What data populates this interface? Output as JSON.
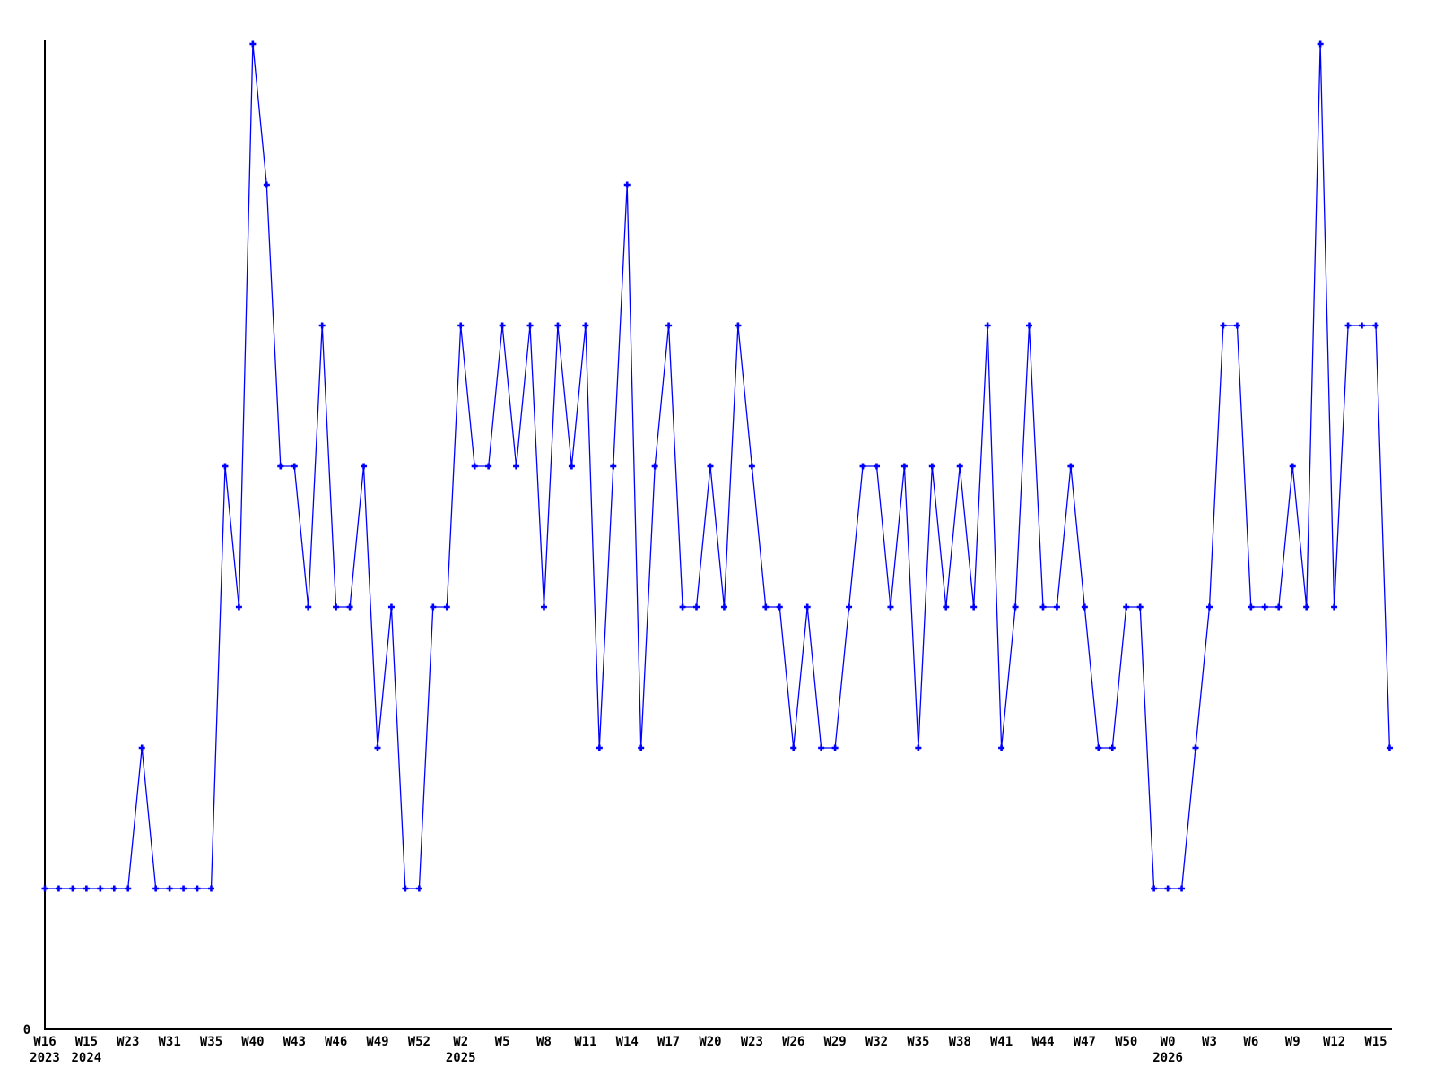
{
  "chart_data": {
    "type": "line",
    "title": "",
    "xlabel": "",
    "ylabel": "",
    "y_axis_zero_label": "0",
    "series_color": "#0000ff",
    "axis_color": "#000000",
    "marker_style": "plus",
    "grid": false,
    "legend": "none",
    "ylim": [
      0,
      7.4
    ],
    "x_tick_interval": 3,
    "values": [
      1,
      1,
      1,
      1,
      1,
      1,
      1,
      2,
      1,
      1,
      1,
      1,
      1,
      4,
      3,
      7,
      6,
      4,
      4,
      3,
      5,
      3,
      3,
      4,
      2,
      3,
      1,
      1,
      3,
      3,
      5,
      4,
      4,
      5,
      4,
      5,
      3,
      5,
      4,
      5,
      2,
      4,
      6,
      2,
      4,
      5,
      3,
      3,
      4,
      3,
      5,
      4,
      3,
      3,
      2,
      3,
      2,
      2,
      3,
      4,
      4,
      3,
      4,
      2,
      4,
      3,
      4,
      3,
      5,
      2,
      3,
      5,
      3,
      3,
      4,
      3,
      2,
      2,
      3,
      3,
      1,
      1,
      1,
      2,
      3,
      5,
      5,
      3,
      3,
      3,
      4,
      3,
      7,
      3,
      5,
      5,
      5,
      2
    ],
    "x_tick_labels": [
      {
        "index": 0,
        "label": "W16",
        "year": "2023"
      },
      {
        "index": 3,
        "label": "W15",
        "year": "2024"
      },
      {
        "index": 6,
        "label": "W23"
      },
      {
        "index": 9,
        "label": "W31"
      },
      {
        "index": 12,
        "label": "W35"
      },
      {
        "index": 15,
        "label": "W40"
      },
      {
        "index": 18,
        "label": "W43"
      },
      {
        "index": 21,
        "label": "W46"
      },
      {
        "index": 24,
        "label": "W49"
      },
      {
        "index": 27,
        "label": "W52"
      },
      {
        "index": 30,
        "label": "W2",
        "year": "2025"
      },
      {
        "index": 33,
        "label": "W5"
      },
      {
        "index": 36,
        "label": "W8"
      },
      {
        "index": 39,
        "label": "W11"
      },
      {
        "index": 42,
        "label": "W14"
      },
      {
        "index": 45,
        "label": "W17"
      },
      {
        "index": 48,
        "label": "W20"
      },
      {
        "index": 51,
        "label": "W23"
      },
      {
        "index": 54,
        "label": "W26"
      },
      {
        "index": 57,
        "label": "W29"
      },
      {
        "index": 60,
        "label": "W32"
      },
      {
        "index": 63,
        "label": "W35"
      },
      {
        "index": 66,
        "label": "W38"
      },
      {
        "index": 69,
        "label": "W41"
      },
      {
        "index": 72,
        "label": "W44"
      },
      {
        "index": 75,
        "label": "W47"
      },
      {
        "index": 78,
        "label": "W50"
      },
      {
        "index": 81,
        "label": "W0",
        "year": "2026"
      },
      {
        "index": 84,
        "label": "W3"
      },
      {
        "index": 87,
        "label": "W6"
      },
      {
        "index": 90,
        "label": "W9"
      },
      {
        "index": 93,
        "label": "W12"
      },
      {
        "index": 96,
        "label": "W15"
      }
    ]
  }
}
